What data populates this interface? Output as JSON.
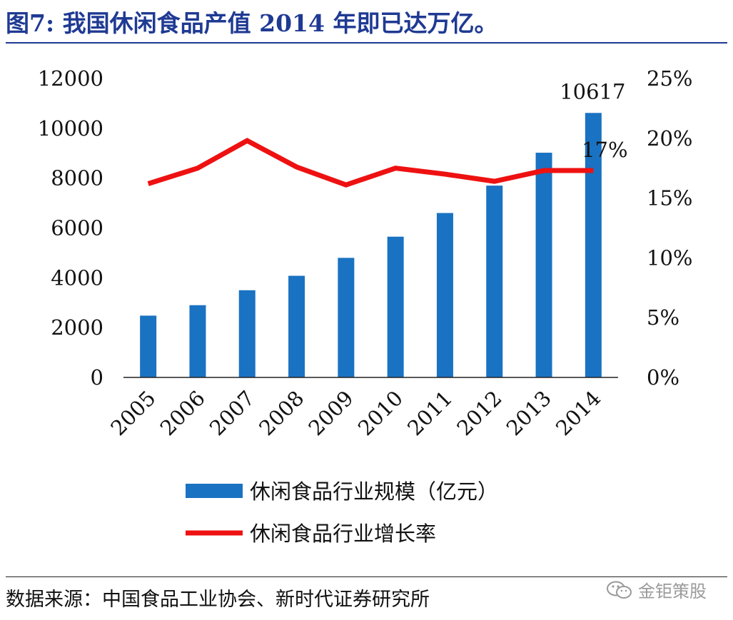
{
  "header": {
    "title": "图7:    我国休闲食品产值 2014 年即已达万亿。"
  },
  "footer": {
    "source": "数据来源：中国食品工业协会、新时代证券研究所",
    "watermark": "金钜策股",
    "watermark_icon": "wechat-icon"
  },
  "chart_data": {
    "type": "bar",
    "categories": [
      "2005",
      "2006",
      "2007",
      "2008",
      "2009",
      "2010",
      "2011",
      "2012",
      "2013",
      "2014"
    ],
    "series": [
      {
        "name": "休闲食品行业规模（亿元）",
        "type": "bar",
        "axis": "left",
        "color": "#1a72c2",
        "values": [
          2480,
          2900,
          3500,
          4080,
          4800,
          5650,
          6600,
          7700,
          9020,
          10617
        ]
      },
      {
        "name": "休闲食品行业增长率",
        "type": "line",
        "axis": "right",
        "color": "#ee1111",
        "values": [
          16.2,
          17.5,
          19.8,
          17.6,
          16.1,
          17.5,
          17.0,
          16.4,
          17.3,
          17.3
        ]
      }
    ],
    "left_axis": {
      "ylim": [
        0,
        12000
      ],
      "ticks": [
        "0",
        "2000",
        "4000",
        "6000",
        "8000",
        "10000",
        "12000"
      ]
    },
    "right_axis": {
      "ylim": [
        0,
        25
      ],
      "ticks": [
        "0%",
        "5%",
        "10%",
        "15%",
        "20%",
        "25%"
      ]
    },
    "data_labels": [
      {
        "series": 0,
        "index": 9,
        "text": "10617"
      },
      {
        "series": 1,
        "index": 9,
        "text": "17%"
      }
    ],
    "legend_position": "bottom",
    "grid": false
  }
}
